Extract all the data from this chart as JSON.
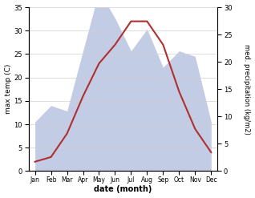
{
  "months": [
    "Jan",
    "Feb",
    "Mar",
    "Apr",
    "May",
    "Jun",
    "Jul",
    "Aug",
    "Sep",
    "Oct",
    "Nov",
    "Dec"
  ],
  "x": [
    0,
    1,
    2,
    3,
    4,
    5,
    6,
    7,
    8,
    9,
    10,
    11
  ],
  "temp": [
    2,
    3,
    8,
    16,
    23,
    27,
    32,
    32,
    27,
    17,
    9,
    4
  ],
  "precip": [
    9,
    12,
    11,
    22,
    33,
    28,
    22,
    26,
    19,
    22,
    21,
    9
  ],
  "temp_color": "#b03030",
  "precip_fill_color": "#b8c4e0",
  "precip_line_color": "#b8c4e0",
  "ylim_left": [
    0,
    35
  ],
  "ylim_right": [
    0,
    30
  ],
  "xlabel": "date (month)",
  "ylabel_left": "max temp (C)",
  "ylabel_right": "med. precipitation (kg/m2)",
  "bg_color": "#ffffff",
  "grid_color": "#d0d0d0"
}
